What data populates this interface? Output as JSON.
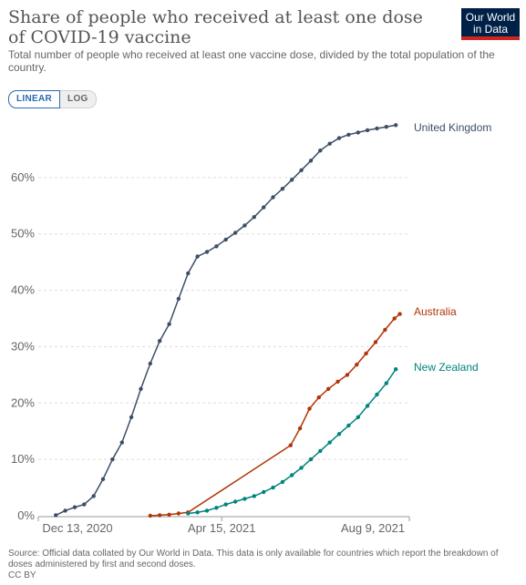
{
  "header": {
    "title": "Share of people who received at least one dose of COVID-19 vaccine",
    "subtitle": "Total number of people who received at least one vaccine dose, divided by the total population of the country.",
    "logo_line1": "Our World",
    "logo_line2": "in Data"
  },
  "scale_toggle": {
    "linear_label": "LINEAR",
    "log_label": "LOG",
    "selected": "LINEAR"
  },
  "footer": {
    "source": "Source: Official data collated by Our World in Data. This data is only available for countries which report the breakdown of doses administered by first and second doses.",
    "license": "CC BY"
  },
  "colors": {
    "united_kingdom": "#3c4e66",
    "australia": "#b13507",
    "new_zealand": "#00847e",
    "grid": "#dddddd",
    "axis_text": "#666666"
  },
  "chart_data": {
    "type": "line",
    "x_ticks": [
      "Dec 13, 2020",
      "Apr 15, 2021",
      "Aug 9, 2021"
    ],
    "y_ticks": [
      "0%",
      "10%",
      "20%",
      "30%",
      "40%",
      "50%",
      "60%"
    ],
    "x_range": [
      "2020-11-30",
      "2021-09-01"
    ],
    "ylim": [
      0,
      70
    ],
    "grid": true,
    "series": [
      {
        "name": "United Kingdom",
        "points": [
          [
            "2020-12-13",
            0.1
          ],
          [
            "2020-12-20",
            0.9
          ],
          [
            "2020-12-27",
            1.5
          ],
          [
            "2021-01-03",
            2.0
          ],
          [
            "2021-01-10",
            3.5
          ],
          [
            "2021-01-17",
            6.5
          ],
          [
            "2021-01-24",
            10.0
          ],
          [
            "2021-01-31",
            13.0
          ],
          [
            "2021-02-07",
            17.5
          ],
          [
            "2021-02-14",
            22.5
          ],
          [
            "2021-02-21",
            27.0
          ],
          [
            "2021-02-28",
            31.0
          ],
          [
            "2021-03-07",
            34.0
          ],
          [
            "2021-03-14",
            38.5
          ],
          [
            "2021-03-21",
            43.0
          ],
          [
            "2021-03-28",
            46.0
          ],
          [
            "2021-04-04",
            46.8
          ],
          [
            "2021-04-11",
            47.8
          ],
          [
            "2021-04-18",
            49.0
          ],
          [
            "2021-04-25",
            50.2
          ],
          [
            "2021-05-02",
            51.5
          ],
          [
            "2021-05-09",
            53.0
          ],
          [
            "2021-05-16",
            54.7
          ],
          [
            "2021-05-23",
            56.5
          ],
          [
            "2021-05-30",
            58.0
          ],
          [
            "2021-06-06",
            59.6
          ],
          [
            "2021-06-13",
            61.3
          ],
          [
            "2021-06-20",
            63.0
          ],
          [
            "2021-06-27",
            64.8
          ],
          [
            "2021-07-04",
            66.0
          ],
          [
            "2021-07-11",
            67.0
          ],
          [
            "2021-07-18",
            67.6
          ],
          [
            "2021-07-25",
            68.0
          ],
          [
            "2021-08-01",
            68.4
          ],
          [
            "2021-08-08",
            68.7
          ],
          [
            "2021-08-15",
            69.0
          ],
          [
            "2021-08-22",
            69.3
          ]
        ]
      },
      {
        "name": "Australia",
        "points": [
          [
            "2021-02-21",
            0.0
          ],
          [
            "2021-02-28",
            0.1
          ],
          [
            "2021-03-07",
            0.2
          ],
          [
            "2021-03-14",
            0.4
          ],
          [
            "2021-03-21",
            0.6
          ],
          [
            "2021-06-05",
            12.5
          ],
          [
            "2021-06-12",
            15.5
          ],
          [
            "2021-06-19",
            19.0
          ],
          [
            "2021-06-26",
            21.0
          ],
          [
            "2021-07-03",
            22.5
          ],
          [
            "2021-07-10",
            23.8
          ],
          [
            "2021-07-17",
            25.0
          ],
          [
            "2021-07-24",
            26.8
          ],
          [
            "2021-07-31",
            28.8
          ],
          [
            "2021-08-07",
            30.8
          ],
          [
            "2021-08-14",
            33.0
          ],
          [
            "2021-08-21",
            35.0
          ],
          [
            "2021-08-25",
            35.8
          ]
        ]
      },
      {
        "name": "New Zealand",
        "points": [
          [
            "2021-03-21",
            0.4
          ],
          [
            "2021-03-28",
            0.6
          ],
          [
            "2021-04-04",
            0.9
          ],
          [
            "2021-04-11",
            1.4
          ],
          [
            "2021-04-18",
            2.0
          ],
          [
            "2021-04-25",
            2.5
          ],
          [
            "2021-05-02",
            3.0
          ],
          [
            "2021-05-09",
            3.5
          ],
          [
            "2021-05-16",
            4.2
          ],
          [
            "2021-05-23",
            5.0
          ],
          [
            "2021-05-30",
            6.0
          ],
          [
            "2021-06-06",
            7.2
          ],
          [
            "2021-06-13",
            8.5
          ],
          [
            "2021-06-20",
            10.0
          ],
          [
            "2021-06-27",
            11.5
          ],
          [
            "2021-07-04",
            13.0
          ],
          [
            "2021-07-11",
            14.5
          ],
          [
            "2021-07-18",
            16.0
          ],
          [
            "2021-07-25",
            17.5
          ],
          [
            "2021-08-01",
            19.5
          ],
          [
            "2021-08-08",
            21.5
          ],
          [
            "2021-08-15",
            23.5
          ],
          [
            "2021-08-22",
            26.0
          ]
        ]
      }
    ]
  }
}
